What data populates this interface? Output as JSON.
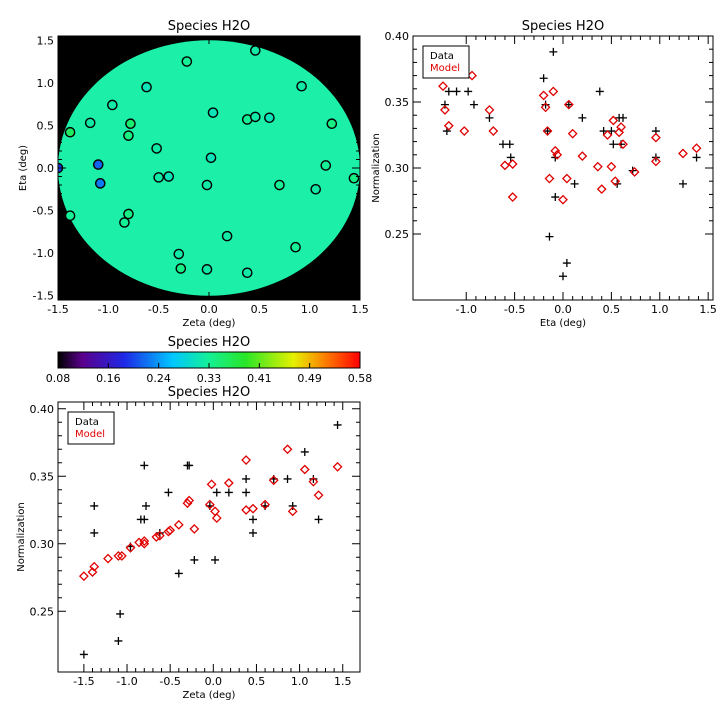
{
  "chart_data": [
    {
      "id": "map",
      "type": "scatter",
      "title": "Species H2O",
      "xlabel": "Zeta (deg)",
      "ylabel": "Eta (deg)",
      "xlim": [
        -1.5,
        1.5
      ],
      "ylim": [
        -1.55,
        1.55
      ],
      "xticks": [
        "-1.5",
        "-1.0",
        "-0.5",
        "0.0",
        "0.5",
        "1.0",
        "1.5"
      ],
      "yticks": [
        "-1.5",
        "-1.0",
        "-0.5",
        "0.0",
        "0.5",
        "1.0",
        "1.5"
      ],
      "background_color": "#000000",
      "field_color": "#1cf0a8",
      "color_encodes": "Normalization",
      "markers": "open circles, outlined black, filled by value",
      "points": [
        [
          -1.5,
          0.0,
          0.2
        ],
        [
          -1.38,
          0.42,
          0.36
        ],
        [
          -1.38,
          -0.56,
          0.33
        ],
        [
          -1.18,
          0.53,
          0.32
        ],
        [
          -1.1,
          0.04,
          0.22
        ],
        [
          -1.08,
          -0.18,
          0.23
        ],
        [
          -0.96,
          0.74,
          0.32
        ],
        [
          -0.84,
          -0.64,
          0.33
        ],
        [
          -0.8,
          0.38,
          0.34
        ],
        [
          -0.78,
          0.52,
          0.35
        ],
        [
          -0.8,
          -0.54,
          0.34
        ],
        [
          -0.62,
          0.95,
          0.31
        ],
        [
          -0.52,
          0.23,
          0.32
        ],
        [
          -0.5,
          -0.11,
          0.32
        ],
        [
          -0.4,
          -0.1,
          0.31
        ],
        [
          -0.3,
          -1.01,
          0.32
        ],
        [
          -0.28,
          -1.18,
          0.34
        ],
        [
          -0.22,
          1.25,
          0.33
        ],
        [
          -0.02,
          -0.2,
          0.32
        ],
        [
          -0.02,
          -1.19,
          0.32
        ],
        [
          0.02,
          0.12,
          0.31
        ],
        [
          0.04,
          0.65,
          0.31
        ],
        [
          0.18,
          -0.8,
          0.32
        ],
        [
          0.38,
          0.57,
          0.33
        ],
        [
          0.38,
          -1.23,
          0.32
        ],
        [
          0.46,
          1.38,
          0.32
        ],
        [
          0.46,
          0.6,
          0.32
        ],
        [
          0.6,
          0.59,
          0.31
        ],
        [
          0.7,
          -0.2,
          0.33
        ],
        [
          0.86,
          -0.93,
          0.33
        ],
        [
          0.92,
          0.96,
          0.32
        ],
        [
          1.06,
          -0.25,
          0.32
        ],
        [
          1.16,
          0.03,
          0.33
        ],
        [
          1.22,
          0.52,
          0.34
        ],
        [
          1.44,
          -0.12,
          0.34
        ]
      ]
    },
    {
      "id": "colorbar",
      "type": "heatmap",
      "title": "Species H2O",
      "range": [
        0.08,
        0.58
      ],
      "ticks": [
        "0.08",
        "0.16",
        "0.24",
        "0.33",
        "0.41",
        "0.49",
        "0.58"
      ],
      "colormap": "rainbow: black-purple-blue-cyan-green-yellow-red"
    },
    {
      "id": "eta_plot",
      "type": "scatter",
      "title": "Species H2O",
      "xlabel": "Eta (deg)",
      "ylabel": "Normalization",
      "xlim": [
        -1.55,
        1.55
      ],
      "ylim": [
        0.2,
        0.4
      ],
      "xticks": [
        "-1.0",
        "-0.5",
        "0.0",
        "0.5",
        "1.0",
        "1.5"
      ],
      "yticks": [
        "0.25",
        "0.30",
        "0.35",
        "0.40"
      ],
      "legend": {
        "entries": [
          "Data",
          "Model"
        ],
        "placement": "top-left"
      },
      "series": [
        {
          "name": "Data",
          "marker": "plus",
          "color": "#000000",
          "points": [
            [
              -1.22,
              0.348
            ],
            [
              -1.2,
              0.328
            ],
            [
              -1.18,
              0.358
            ],
            [
              -1.1,
              0.358
            ],
            [
              -0.98,
              0.358
            ],
            [
              -0.92,
              0.348
            ],
            [
              -0.76,
              0.338
            ],
            [
              -0.62,
              0.318
            ],
            [
              -0.55,
              0.318
            ],
            [
              -0.54,
              0.308
            ],
            [
              -0.2,
              0.368
            ],
            [
              -0.18,
              0.348
            ],
            [
              -0.16,
              0.328
            ],
            [
              -0.14,
              0.248
            ],
            [
              -0.1,
              0.388
            ],
            [
              -0.08,
              0.308
            ],
            [
              -0.08,
              0.278
            ],
            [
              0.0,
              0.218
            ],
            [
              0.04,
              0.228
            ],
            [
              0.06,
              0.348
            ],
            [
              0.12,
              0.288
            ],
            [
              0.2,
              0.338
            ],
            [
              0.38,
              0.358
            ],
            [
              0.42,
              0.328
            ],
            [
              0.5,
              0.328
            ],
            [
              0.52,
              0.318
            ],
            [
              0.56,
              0.288
            ],
            [
              0.58,
              0.338
            ],
            [
              0.6,
              0.318
            ],
            [
              0.62,
              0.338
            ],
            [
              0.72,
              0.298
            ],
            [
              0.96,
              0.328
            ],
            [
              0.96,
              0.308
            ],
            [
              1.24,
              0.288
            ],
            [
              1.38,
              0.308
            ]
          ]
        },
        {
          "name": "Model",
          "marker": "diamond",
          "color": "#e00000",
          "points": [
            [
              -1.24,
              0.362
            ],
            [
              -1.22,
              0.344
            ],
            [
              -1.18,
              0.332
            ],
            [
              -1.02,
              0.328
            ],
            [
              -0.94,
              0.37
            ],
            [
              -0.76,
              0.344
            ],
            [
              -0.72,
              0.328
            ],
            [
              -0.6,
              0.302
            ],
            [
              -0.52,
              0.278
            ],
            [
              -0.52,
              0.303
            ],
            [
              -0.2,
              0.355
            ],
            [
              -0.18,
              0.346
            ],
            [
              -0.16,
              0.328
            ],
            [
              -0.14,
              0.292
            ],
            [
              -0.1,
              0.358
            ],
            [
              -0.08,
              0.313
            ],
            [
              -0.06,
              0.31
            ],
            [
              0.0,
              0.276
            ],
            [
              0.04,
              0.292
            ],
            [
              0.06,
              0.348
            ],
            [
              0.1,
              0.326
            ],
            [
              0.2,
              0.309
            ],
            [
              0.36,
              0.301
            ],
            [
              0.4,
              0.284
            ],
            [
              0.46,
              0.325
            ],
            [
              0.5,
              0.301
            ],
            [
              0.52,
              0.336
            ],
            [
              0.54,
              0.29
            ],
            [
              0.58,
              0.327
            ],
            [
              0.6,
              0.331
            ],
            [
              0.62,
              0.318
            ],
            [
              0.74,
              0.297
            ],
            [
              0.96,
              0.323
            ],
            [
              0.96,
              0.305
            ],
            [
              1.24,
              0.311
            ],
            [
              1.38,
              0.315
            ]
          ]
        }
      ]
    },
    {
      "id": "zeta_plot",
      "type": "scatter",
      "title": "Species H2O",
      "xlabel": "Zeta (deg)",
      "ylabel": "Normalization",
      "xlim": [
        -1.8,
        1.7
      ],
      "ylim": [
        0.205,
        0.405
      ],
      "xticks": [
        "-1.5",
        "-1.0",
        "-0.5",
        "0.0",
        "0.5",
        "1.0",
        "1.5"
      ],
      "yticks": [
        "0.25",
        "0.30",
        "0.35",
        "0.40"
      ],
      "legend": {
        "entries": [
          "Data",
          "Model"
        ],
        "placement": "top-left"
      },
      "series": [
        {
          "name": "Data",
          "marker": "plus",
          "color": "#000000",
          "points": [
            [
              -1.5,
              0.218
            ],
            [
              -1.38,
              0.328
            ],
            [
              -1.38,
              0.308
            ],
            [
              -1.1,
              0.228
            ],
            [
              -1.08,
              0.248
            ],
            [
              -0.96,
              0.298
            ],
            [
              -0.84,
              0.318
            ],
            [
              -0.8,
              0.358
            ],
            [
              -0.8,
              0.318
            ],
            [
              -0.78,
              0.328
            ],
            [
              -0.62,
              0.308
            ],
            [
              -0.52,
              0.338
            ],
            [
              -0.4,
              0.278
            ],
            [
              -0.3,
              0.358
            ],
            [
              -0.28,
              0.358
            ],
            [
              -0.22,
              0.288
            ],
            [
              -0.04,
              0.328
            ],
            [
              0.02,
              0.288
            ],
            [
              0.04,
              0.338
            ],
            [
              0.18,
              0.338
            ],
            [
              0.38,
              0.348
            ],
            [
              0.38,
              0.338
            ],
            [
              0.46,
              0.318
            ],
            [
              0.46,
              0.308
            ],
            [
              0.6,
              0.328
            ],
            [
              0.7,
              0.348
            ],
            [
              0.86,
              0.348
            ],
            [
              0.92,
              0.328
            ],
            [
              1.06,
              0.368
            ],
            [
              1.16,
              0.348
            ],
            [
              1.22,
              0.318
            ],
            [
              1.44,
              0.388
            ]
          ]
        },
        {
          "name": "Model",
          "marker": "diamond",
          "color": "#e00000",
          "points": [
            [
              -1.5,
              0.276
            ],
            [
              -1.4,
              0.279
            ],
            [
              -1.38,
              0.283
            ],
            [
              -1.22,
              0.289
            ],
            [
              -1.1,
              0.291
            ],
            [
              -1.06,
              0.291
            ],
            [
              -0.96,
              0.297
            ],
            [
              -0.86,
              0.301
            ],
            [
              -0.8,
              0.3
            ],
            [
              -0.8,
              0.302
            ],
            [
              -0.66,
              0.305
            ],
            [
              -0.62,
              0.306
            ],
            [
              -0.52,
              0.309
            ],
            [
              -0.5,
              0.31
            ],
            [
              -0.4,
              0.314
            ],
            [
              -0.3,
              0.33
            ],
            [
              -0.28,
              0.332
            ],
            [
              -0.22,
              0.311
            ],
            [
              -0.04,
              0.329
            ],
            [
              -0.02,
              0.344
            ],
            [
              0.02,
              0.324
            ],
            [
              0.04,
              0.319
            ],
            [
              0.18,
              0.345
            ],
            [
              0.38,
              0.362
            ],
            [
              0.38,
              0.325
            ],
            [
              0.46,
              0.326
            ],
            [
              0.6,
              0.329
            ],
            [
              0.7,
              0.347
            ],
            [
              0.86,
              0.37
            ],
            [
              0.92,
              0.324
            ],
            [
              1.06,
              0.355
            ],
            [
              1.16,
              0.346
            ],
            [
              1.22,
              0.336
            ],
            [
              1.44,
              0.357
            ]
          ]
        }
      ]
    }
  ]
}
